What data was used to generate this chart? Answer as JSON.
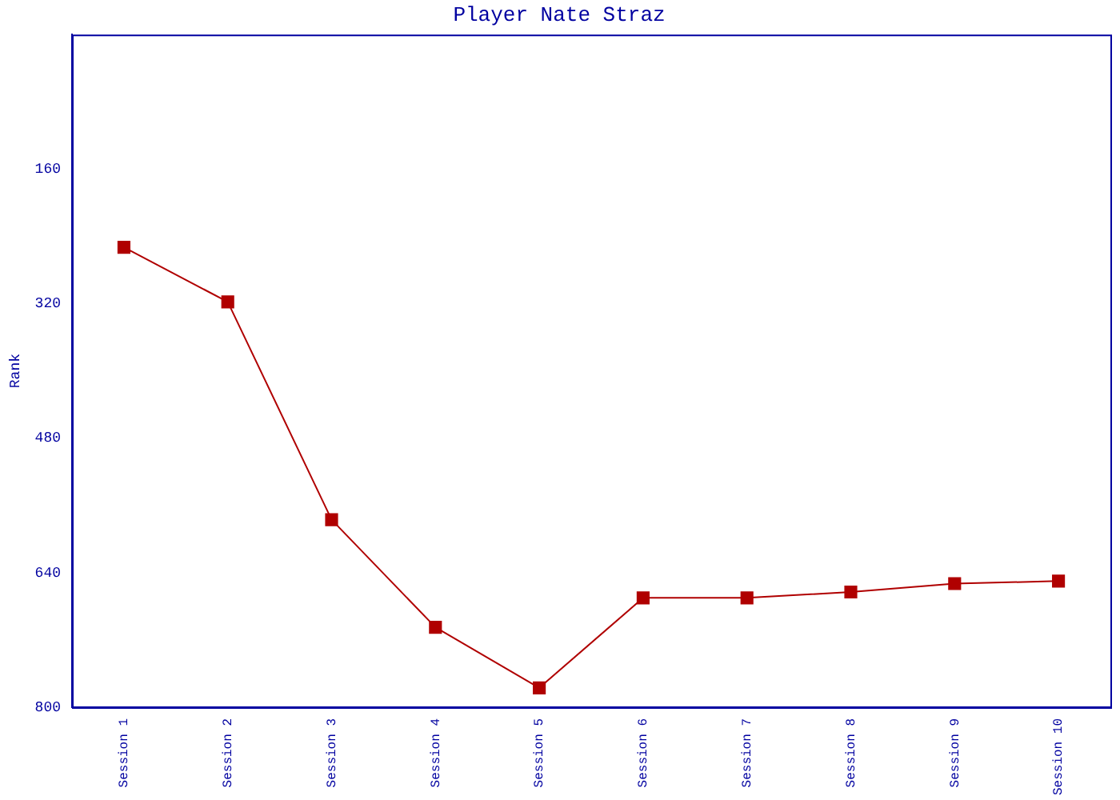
{
  "chart_data": {
    "type": "line",
    "title": "Player Nate Straz",
    "ylabel": "Rank",
    "categories": [
      "Session 1",
      "Session 2",
      "Session 3",
      "Session 4",
      "Session 5",
      "Session 6",
      "Session 7",
      "Session 8",
      "Session 9",
      "Session 10"
    ],
    "series": [
      {
        "color": "#b00000",
        "values": [
          253,
          318,
          577,
          705,
          777,
          670,
          670,
          663,
          653,
          650
        ]
      }
    ],
    "ylim": [
      800,
      0
    ],
    "yticks": [
      160,
      320,
      480,
      640,
      800
    ],
    "grid": false,
    "legend": false,
    "marker": "square",
    "line_style": "solid"
  }
}
